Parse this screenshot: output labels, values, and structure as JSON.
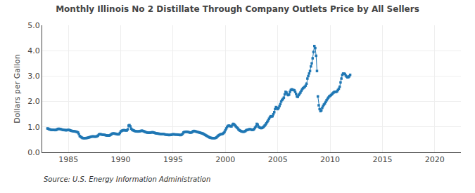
{
  "chart_data": {
    "type": "line",
    "title": "Monthly Illinois No 2 Distillate Through Company Outlets Price by All Sellers",
    "ylabel": "Dollars per Gallon",
    "source": "Source: U.S. Energy Information Administration",
    "marker": "square",
    "grid": true,
    "xlim": [
      1982.5,
      2022.5
    ],
    "ylim": [
      0.0,
      5.0
    ],
    "xticks": [
      1985,
      1990,
      1995,
      2000,
      2005,
      2010,
      2015,
      2020
    ],
    "yticks": [
      {
        "value": 0.0,
        "label": "0.0"
      },
      {
        "value": 1.0,
        "label": "1.0"
      },
      {
        "value": 2.0,
        "label": "2.0"
      },
      {
        "value": 3.0,
        "label": "3.0"
      },
      {
        "value": 4.0,
        "label": "4.0"
      },
      {
        "value": 5.0,
        "label": "5.0"
      }
    ],
    "x": [
      1983.0,
      1983.083,
      1983.167,
      1983.25,
      1983.333,
      1983.417,
      1983.5,
      1983.583,
      1983.667,
      1983.75,
      1983.833,
      1983.917,
      1984.0,
      1984.083,
      1984.167,
      1984.25,
      1984.333,
      1984.417,
      1984.5,
      1984.583,
      1984.667,
      1984.75,
      1984.833,
      1984.917,
      1985.0,
      1985.083,
      1985.167,
      1985.25,
      1985.333,
      1985.417,
      1985.5,
      1985.583,
      1985.667,
      1985.75,
      1985.833,
      1985.917,
      1986.0,
      1986.083,
      1986.167,
      1986.25,
      1986.333,
      1986.417,
      1986.5,
      1986.583,
      1986.667,
      1986.75,
      1986.833,
      1986.917,
      1987.0,
      1987.083,
      1987.167,
      1987.25,
      1987.333,
      1987.417,
      1987.5,
      1987.583,
      1987.667,
      1987.75,
      1987.833,
      1987.917,
      1988.0,
      1988.083,
      1988.167,
      1988.25,
      1988.333,
      1988.417,
      1988.5,
      1988.583,
      1988.667,
      1988.75,
      1988.833,
      1988.917,
      1989.0,
      1989.083,
      1989.167,
      1989.25,
      1989.333,
      1989.417,
      1989.5,
      1989.583,
      1989.667,
      1989.75,
      1989.833,
      1989.917,
      1990.0,
      1990.083,
      1990.167,
      1990.25,
      1990.333,
      1990.417,
      1990.5,
      1990.583,
      1990.667,
      1990.75,
      1990.833,
      1990.917,
      1991.0,
      1991.083,
      1991.167,
      1991.25,
      1991.333,
      1991.417,
      1991.5,
      1991.583,
      1991.667,
      1991.75,
      1991.833,
      1991.917,
      1992.0,
      1992.083,
      1992.167,
      1992.25,
      1992.333,
      1992.417,
      1992.5,
      1992.583,
      1992.667,
      1992.75,
      1992.833,
      1992.917,
      1993.0,
      1993.083,
      1993.167,
      1993.25,
      1993.333,
      1993.417,
      1993.5,
      1993.583,
      1993.667,
      1993.75,
      1993.833,
      1993.917,
      1994.0,
      1994.083,
      1994.167,
      1994.25,
      1994.333,
      1994.417,
      1994.5,
      1994.583,
      1994.667,
      1994.75,
      1994.833,
      1994.917,
      1995.0,
      1995.083,
      1995.167,
      1995.25,
      1995.333,
      1995.417,
      1995.5,
      1995.583,
      1995.667,
      1995.75,
      1995.833,
      1995.917,
      1996.0,
      1996.083,
      1996.167,
      1996.25,
      1996.333,
      1996.417,
      1996.5,
      1996.583,
      1996.667,
      1996.75,
      1996.833,
      1996.917,
      1997.0,
      1997.083,
      1997.167,
      1997.25,
      1997.333,
      1997.417,
      1997.5,
      1997.583,
      1997.667,
      1997.75,
      1997.833,
      1997.917,
      1998.0,
      1998.083,
      1998.167,
      1998.25,
      1998.333,
      1998.417,
      1998.5,
      1998.583,
      1998.667,
      1998.75,
      1998.833,
      1998.917,
      1999.0,
      1999.083,
      1999.167,
      1999.25,
      1999.333,
      1999.417,
      1999.5,
      1999.583,
      1999.667,
      1999.75,
      1999.833,
      1999.917,
      2000.0,
      2000.083,
      2000.167,
      2000.25,
      2000.333,
      2000.417,
      2000.5,
      2000.583,
      2000.667,
      2000.75,
      2000.833,
      2000.917,
      2001.0,
      2001.083,
      2001.167,
      2001.25,
      2001.333,
      2001.417,
      2001.5,
      2001.583,
      2001.667,
      2001.75,
      2001.833,
      2001.917,
      2002.0,
      2002.083,
      2002.167,
      2002.25,
      2002.333,
      2002.417,
      2002.5,
      2002.583,
      2002.667,
      2002.75,
      2002.833,
      2002.917,
      2003.0,
      2003.083,
      2003.167,
      2003.25,
      2003.333,
      2003.417,
      2003.5,
      2003.583,
      2003.667,
      2003.75,
      2003.833,
      2003.917,
      2004.0,
      2004.083,
      2004.167,
      2004.25,
      2004.333,
      2004.417,
      2004.5,
      2004.583,
      2004.667,
      2004.75,
      2004.833,
      2004.917,
      2005.0,
      2005.083,
      2005.167,
      2005.25,
      2005.333,
      2005.417,
      2005.5,
      2005.583,
      2005.667,
      2005.75,
      2005.833,
      2005.917,
      2006.0,
      2006.083,
      2006.167,
      2006.25,
      2006.333,
      2006.417,
      2006.5,
      2006.583,
      2006.667,
      2006.75,
      2006.833,
      2006.917,
      2007.0,
      2007.083,
      2007.167,
      2007.25,
      2007.333,
      2007.417,
      2007.5,
      2007.583,
      2007.667,
      2007.75,
      2007.833,
      2007.917,
      2008.0,
      2008.083,
      2008.167,
      2008.25,
      2008.333,
      2008.417,
      2008.5,
      null,
      2008.583,
      2008.667,
      2008.75,
      null,
      2008.833,
      2008.917,
      2009.0,
      2009.083,
      2009.167,
      2009.25,
      2009.333,
      2009.417,
      2009.5,
      2009.583,
      2009.667,
      2009.75,
      2009.833,
      2009.917,
      2010.0,
      2010.083,
      2010.167,
      2010.25,
      2010.333,
      2010.417,
      2010.5,
      2010.583,
      2010.667,
      2010.75,
      2010.833,
      2010.917,
      2011.0,
      2011.083,
      2011.167,
      2011.25,
      2011.333,
      2011.417,
      2011.5,
      2011.583,
      2011.667,
      2011.75,
      2011.833,
      2011.917
    ],
    "values": [
      0.939,
      0.928,
      0.906,
      0.898,
      0.885,
      0.882,
      0.881,
      0.878,
      0.877,
      0.874,
      0.88,
      0.901,
      0.92,
      0.925,
      0.92,
      0.912,
      0.9,
      0.89,
      0.882,
      0.875,
      0.875,
      0.868,
      0.87,
      0.875,
      0.88,
      0.875,
      0.865,
      0.85,
      0.84,
      0.835,
      0.83,
      0.825,
      0.818,
      0.81,
      0.8,
      0.78,
      0.72,
      0.64,
      0.61,
      0.59,
      0.565,
      0.56,
      0.555,
      0.56,
      0.56,
      0.565,
      0.57,
      0.578,
      0.59,
      0.6,
      0.615,
      0.62,
      0.625,
      0.62,
      0.62,
      0.618,
      0.62,
      0.635,
      0.66,
      0.7,
      0.715,
      0.71,
      0.7,
      0.695,
      0.69,
      0.685,
      0.68,
      0.67,
      0.665,
      0.66,
      0.66,
      0.66,
      0.68,
      0.7,
      0.73,
      0.74,
      0.74,
      0.735,
      0.73,
      0.72,
      0.71,
      0.705,
      0.71,
      0.76,
      0.82,
      0.84,
      0.86,
      0.87,
      0.87,
      0.865,
      0.86,
      0.86,
      0.9,
      1.05,
      1.07,
      1.02,
      0.93,
      0.89,
      0.87,
      0.855,
      0.84,
      0.83,
      0.825,
      0.82,
      0.82,
      0.825,
      0.83,
      0.84,
      0.85,
      0.845,
      0.835,
      0.82,
      0.8,
      0.79,
      0.78,
      0.775,
      0.77,
      0.77,
      0.775,
      0.78,
      0.79,
      0.785,
      0.775,
      0.765,
      0.75,
      0.745,
      0.74,
      0.735,
      0.73,
      0.725,
      0.72,
      0.715,
      0.72,
      0.715,
      0.71,
      0.7,
      0.695,
      0.69,
      0.685,
      0.68,
      0.68,
      0.685,
      0.69,
      0.7,
      0.71,
      0.705,
      0.7,
      0.7,
      0.7,
      0.695,
      0.69,
      0.685,
      0.68,
      0.68,
      0.7,
      0.73,
      0.78,
      0.8,
      0.8,
      0.81,
      0.81,
      0.8,
      0.79,
      0.78,
      0.775,
      0.78,
      0.8,
      0.83,
      0.84,
      0.83,
      0.82,
      0.81,
      0.8,
      0.79,
      0.78,
      0.77,
      0.76,
      0.75,
      0.74,
      0.72,
      0.7,
      0.68,
      0.66,
      0.64,
      0.62,
      0.6,
      0.58,
      0.57,
      0.565,
      0.56,
      0.56,
      0.558,
      0.56,
      0.57,
      0.59,
      0.63,
      0.66,
      0.68,
      0.7,
      0.715,
      0.72,
      0.73,
      0.76,
      0.8,
      0.87,
      0.94,
      1.0,
      1.04,
      1.05,
      1.04,
      1.02,
      1.02,
      1.08,
      1.12,
      1.1,
      1.06,
      1.02,
      0.98,
      0.95,
      0.9,
      0.87,
      0.85,
      0.83,
      0.82,
      0.81,
      0.81,
      0.82,
      0.84,
      0.87,
      0.88,
      0.89,
      0.9,
      0.91,
      0.9,
      0.89,
      0.88,
      0.89,
      0.92,
      0.97,
      1.02,
      1.12,
      1.09,
      1.01,
      0.98,
      0.96,
      0.95,
      0.96,
      0.98,
      1.01,
      1.05,
      1.09,
      1.14,
      1.2,
      1.25,
      1.32,
      1.38,
      1.42,
      1.41,
      1.42,
      1.5,
      1.58,
      1.7,
      1.78,
      1.75,
      1.7,
      1.75,
      1.82,
      1.9,
      2.0,
      2.06,
      2.1,
      2.15,
      2.28,
      2.38,
      2.35,
      2.28,
      2.25,
      2.27,
      2.38,
      2.45,
      2.48,
      2.46,
      2.45,
      2.44,
      2.38,
      2.3,
      2.2,
      2.18,
      2.25,
      2.3,
      2.35,
      2.42,
      2.48,
      2.52,
      2.55,
      2.58,
      2.62,
      2.7,
      2.9,
      3.0,
      3.1,
      3.2,
      3.38,
      3.5,
      3.7,
      3.95,
      4.18,
      null,
      4.1,
      3.8,
      3.2,
      null,
      2.2,
      1.85,
      1.7,
      1.62,
      1.65,
      1.75,
      1.82,
      1.88,
      1.92,
      1.98,
      2.05,
      2.1,
      2.15,
      2.2,
      2.22,
      2.25,
      2.28,
      2.32,
      2.35,
      2.38,
      2.38,
      2.38,
      2.4,
      2.45,
      2.5,
      2.58,
      2.75,
      2.9,
      3.05,
      3.1,
      3.1,
      3.08,
      3.02,
      2.98,
      2.95,
      2.96,
      2.99,
      3.05
    ]
  }
}
